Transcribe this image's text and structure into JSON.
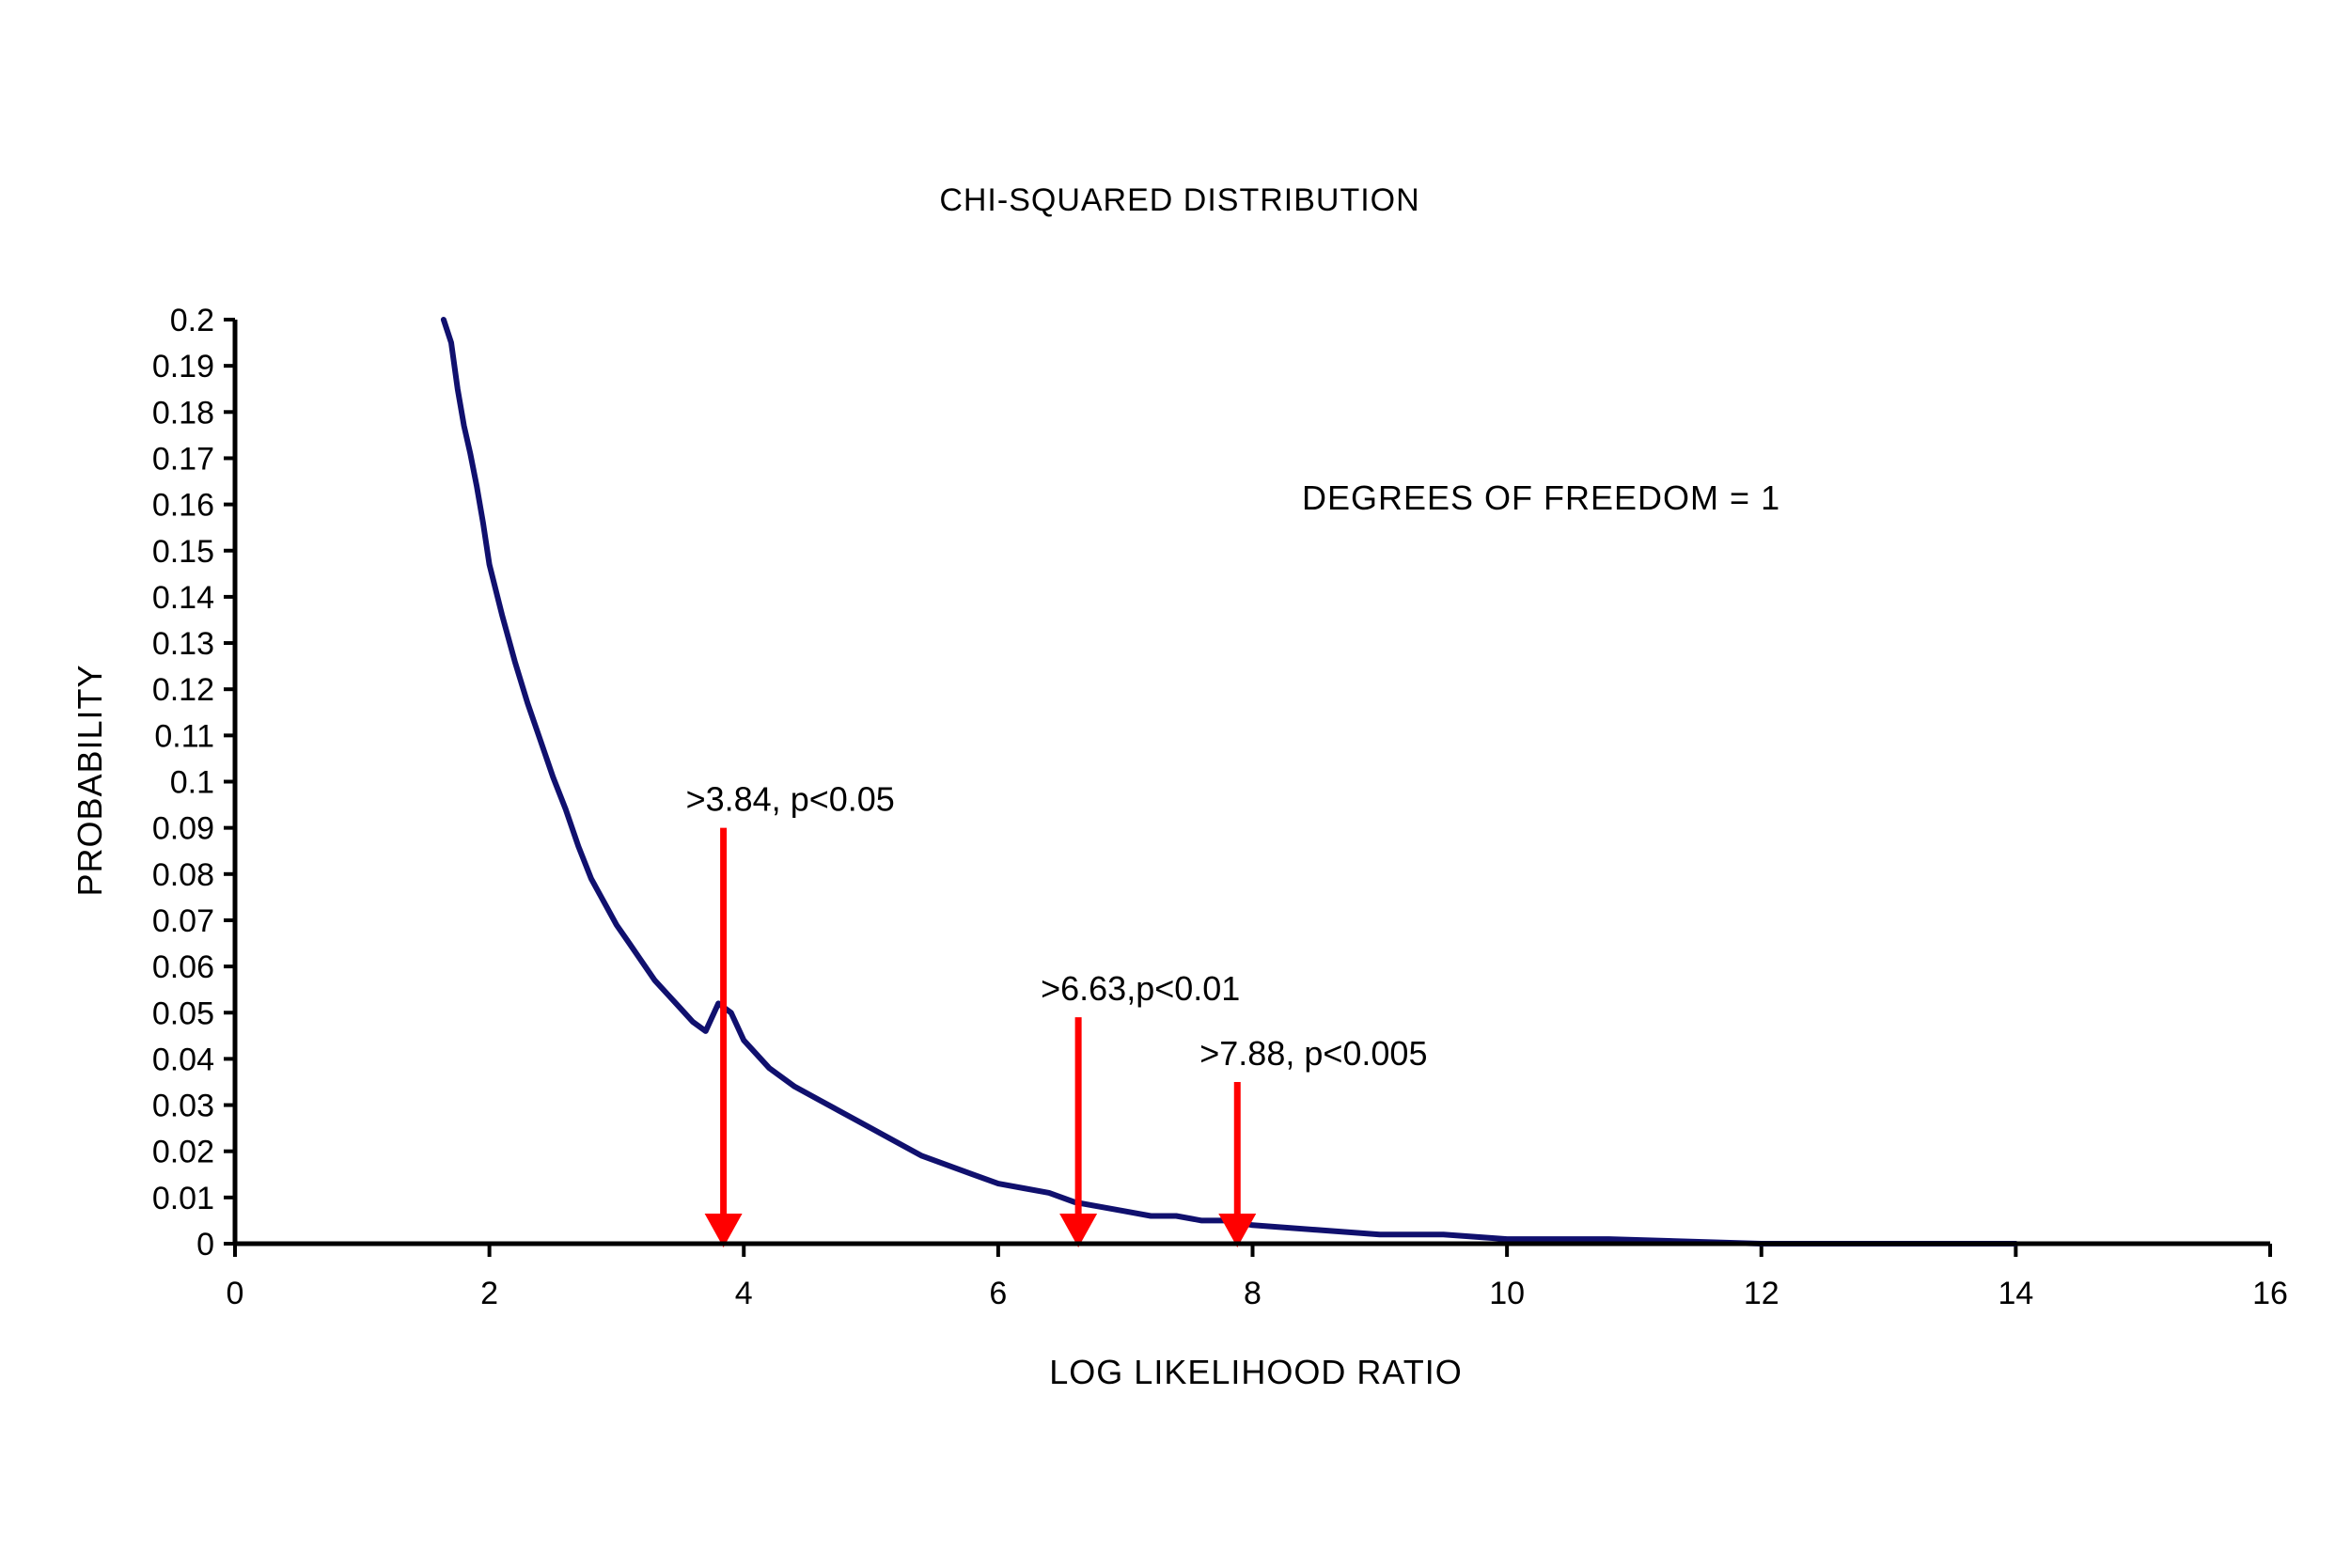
{
  "chart_data": {
    "type": "line",
    "title": "CHI-SQUARED DISTRIBUTION",
    "xlabel": "LOG LIKELIHOOD RATIO",
    "ylabel": "PROBABILITY",
    "xlim": [
      0,
      16
    ],
    "ylim": [
      0,
      0.2
    ],
    "x_ticks": [
      "0",
      "2",
      "4",
      "6",
      "8",
      "10",
      "12",
      "14",
      "16"
    ],
    "y_ticks": [
      "0",
      "0.01",
      "0.02",
      "0.03",
      "0.04",
      "0.05",
      "0.06",
      "0.07",
      "0.08",
      "0.09",
      "0.1",
      "0.11",
      "0.12",
      "0.13",
      "0.14",
      "0.15",
      "0.16",
      "0.17",
      "0.18",
      "0.19",
      "0.2"
    ],
    "grid": false,
    "legend": "none",
    "series": [
      {
        "color": "#10106e",
        "x": [
          1.64,
          1.7,
          1.75,
          1.8,
          1.85,
          1.9,
          1.95,
          2.0,
          2.1,
          2.2,
          2.3,
          2.4,
          2.5,
          2.6,
          2.7,
          2.8,
          2.9,
          3.0,
          3.1,
          3.2,
          3.3,
          3.4,
          3.5,
          3.6,
          3.7,
          3.8,
          3.9,
          4.0,
          4.2,
          4.4,
          4.6,
          4.8,
          5.0,
          5.2,
          5.4,
          5.6,
          5.8,
          6.0,
          6.2,
          6.4,
          6.6,
          6.8,
          7.0,
          7.2,
          7.4,
          7.6,
          7.8,
          8.0,
          8.5,
          9.0,
          9.5,
          10.0,
          10.8,
          12.0,
          14.0
        ],
        "y": [
          0.2,
          0.195,
          0.185,
          0.177,
          0.171,
          0.164,
          0.156,
          0.147,
          0.136,
          0.126,
          0.117,
          0.109,
          0.101,
          0.094,
          0.086,
          0.079,
          0.074,
          0.069,
          0.065,
          0.061,
          0.057,
          0.054,
          0.051,
          0.048,
          0.046,
          0.052,
          0.05,
          0.044,
          0.038,
          0.034,
          0.031,
          0.028,
          0.025,
          0.022,
          0.019,
          0.017,
          0.015,
          0.013,
          0.012,
          0.011,
          0.009,
          0.008,
          0.007,
          0.006,
          0.006,
          0.005,
          0.005,
          0.004,
          0.003,
          0.002,
          0.002,
          0.001,
          0.001,
          0.0,
          0.0
        ]
      }
    ],
    "annotations": [
      {
        "text": ">3.84, p<0.05",
        "x": 3.84,
        "y_top": 0.09,
        "color": "#ff0000"
      },
      {
        "text": ">6.63,p<0.01",
        "x": 6.63,
        "y_top": 0.049,
        "color": "#ff0000"
      },
      {
        "text": ">7.88, p<0.005",
        "x": 7.88,
        "y_top": 0.035,
        "color": "#ff0000"
      }
    ],
    "note": "DEGREES OF FREEDOM = 1"
  }
}
